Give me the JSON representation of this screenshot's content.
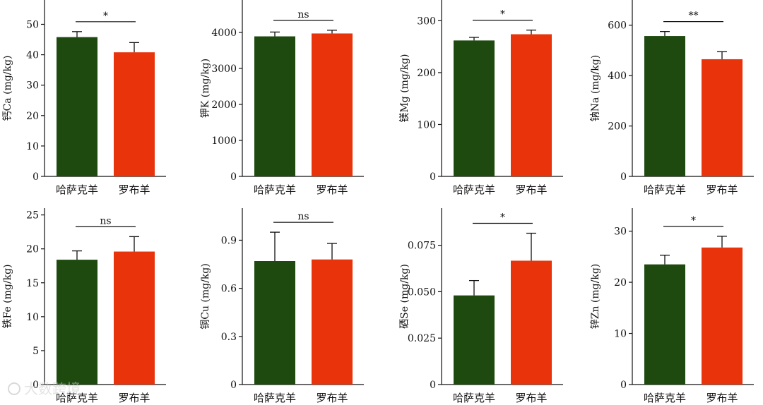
{
  "colors": {
    "hasake": "#1e4a10",
    "luobu": "#e8330b"
  },
  "categories": [
    "哈萨克羊",
    "罗布羊"
  ],
  "watermark": "大数跨境",
  "chart_data": [
    {
      "type": "bar",
      "ylabel": "钙Ca (mg/kg)",
      "ylim": [
        0,
        58
      ],
      "yticks": [
        0,
        10,
        20,
        30,
        40,
        50
      ],
      "tick_labels": [
        "0",
        "10",
        "20",
        "30",
        "40",
        "50"
      ],
      "categories": [
        "哈萨克羊",
        "罗布羊"
      ],
      "values": [
        45.8,
        40.8
      ],
      "errors": [
        1.8,
        3.2
      ],
      "significance": "*"
    },
    {
      "type": "bar",
      "ylabel": "钾K (mg/kg)",
      "ylim": [
        0,
        4900
      ],
      "yticks": [
        0,
        1000,
        2000,
        3000,
        4000
      ],
      "tick_labels": [
        "0",
        "1000",
        "2000",
        "3000",
        "4000"
      ],
      "categories": [
        "哈萨克羊",
        "罗布羊"
      ],
      "values": [
        3890,
        3970
      ],
      "errors": [
        120,
        90
      ],
      "significance": "ns"
    },
    {
      "type": "bar",
      "ylabel": "镁Mg (mg/kg)",
      "ylim": [
        0,
        340
      ],
      "yticks": [
        0,
        100,
        200,
        300
      ],
      "tick_labels": [
        "0",
        "100",
        "200",
        "300"
      ],
      "categories": [
        "哈萨克羊",
        "罗布羊"
      ],
      "values": [
        262,
        274
      ],
      "errors": [
        6,
        8
      ],
      "significance": "*"
    },
    {
      "type": "bar",
      "ylabel": "钠Na (mg/kg)",
      "ylim": [
        0,
        700
      ],
      "yticks": [
        0,
        200,
        400,
        600
      ],
      "tick_labels": [
        "0",
        "200",
        "400",
        "600"
      ],
      "categories": [
        "哈萨克羊",
        "罗布羊"
      ],
      "values": [
        557,
        465
      ],
      "errors": [
        18,
        30
      ],
      "significance": "**"
    },
    {
      "type": "bar",
      "ylabel": "铁Fe (mg/kg)",
      "ylim": [
        0,
        26
      ],
      "yticks": [
        0,
        5,
        10,
        15,
        20,
        25
      ],
      "tick_labels": [
        "0",
        "5",
        "10",
        "15",
        "20",
        "25"
      ],
      "categories": [
        "哈萨克羊",
        "罗布羊"
      ],
      "values": [
        18.4,
        19.6
      ],
      "errors": [
        1.3,
        2.2
      ],
      "significance": "ns"
    },
    {
      "type": "bar",
      "ylabel": "铜Cu (mg/kg)",
      "ylim": [
        0,
        1.1
      ],
      "yticks": [
        0,
        0.3,
        0.6,
        0.9
      ],
      "tick_labels": [
        "0",
        "0.3",
        "0.6",
        "0.9"
      ],
      "categories": [
        "哈萨克羊",
        "罗布羊"
      ],
      "values": [
        0.77,
        0.78
      ],
      "errors": [
        0.18,
        0.1
      ],
      "significance": "ns"
    },
    {
      "type": "bar",
      "ylabel": "硒Se (mg/kg)",
      "ylim": [
        0,
        0.095
      ],
      "yticks": [
        0,
        0.025,
        0.05,
        0.075
      ],
      "tick_labels": [
        "0",
        "0.025",
        "0.050",
        "0.075"
      ],
      "categories": [
        "哈萨克羊",
        "罗布羊"
      ],
      "values": [
        0.048,
        0.0667
      ],
      "errors": [
        0.008,
        0.0148
      ],
      "significance": "*"
    },
    {
      "type": "bar",
      "ylabel": "锌Zn (mg/kg)",
      "ylim": [
        0,
        34.5
      ],
      "yticks": [
        0,
        10,
        20,
        30
      ],
      "tick_labels": [
        "0",
        "10",
        "20",
        "30"
      ],
      "categories": [
        "哈萨克羊",
        "罗布羊"
      ],
      "values": [
        23.5,
        26.8
      ],
      "errors": [
        1.8,
        2.2
      ],
      "significance": "*"
    }
  ]
}
